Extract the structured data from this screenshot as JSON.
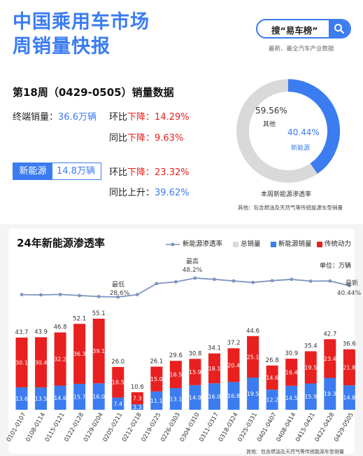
{
  "header": {
    "title_line1": "中国乘用车市场",
    "title_line2": "周销量快报",
    "search_label": "搜“易车榜”",
    "search_subtitle": "最新、最全汽车产业数据"
  },
  "summary": {
    "week_title": "第18周（0429-0505）销量数据",
    "terminal_label": "终端销量：",
    "terminal_value": "36.6万辆",
    "mom_label": "环比",
    "mom_dir": "下降：",
    "mom_value": "14.29%",
    "yoy_label": "同比",
    "yoy_dir": "下降：",
    "yoy_value": "9.63%",
    "nev_label": "新能源",
    "nev_value": "14.8万辆",
    "nev_mom_label": "环比",
    "nev_mom_dir": "下降：",
    "nev_mom_value": "23.32%",
    "nev_yoy_label": "同比上升：",
    "nev_yoy_value": "39.62%"
  },
  "donut": {
    "other_pct": "59.56%",
    "other_label": "其他",
    "nev_pct": "40.44%",
    "nev_label": "新能源",
    "nev_share": 0.4044,
    "caption": "本周新能源渗透率",
    "note": "其他：包含燃油及天然气等传统能源车型销量"
  },
  "colors": {
    "blue": "#3b7cf0",
    "red": "#e8201f",
    "gray": "#d9d9d9",
    "line": "#7d93bf"
  },
  "chart": {
    "title": "24年新能源渗透率",
    "unit": "单位：万辆",
    "footnote": "其他：包含燃油及天然气等传统能源车型销量",
    "legend": [
      "新能源渗透率",
      "总销量",
      "新能源销量",
      "传统动力"
    ],
    "annotations": {
      "low_label": "最低",
      "low_value": "28.6%",
      "high_label": "最高",
      "high_value": "48.2%",
      "latest_label": "最新",
      "latest_value": "40.44%"
    }
  },
  "chart_data": {
    "type": "bar",
    "stacked": true,
    "categories": [
      "0101-0107",
      "0108-0114",
      "0115-0121",
      "0122-0128",
      "0129-0204",
      "0205-0211",
      "0212-0218",
      "0219-0225",
      "0226-0303",
      "0304-0310",
      "0311-0317",
      "0318-0324",
      "0325-0331",
      "0401-0407",
      "0408-0414",
      "0415-0421",
      "0422-0428",
      "0429-0505"
    ],
    "series": [
      {
        "name": "新能源销量",
        "values": [
          13.6,
          13.5,
          14.6,
          15.7,
          16.0,
          7.4,
          3.3,
          11.1,
          13.1,
          14.9,
          16.0,
          16.8,
          19.5,
          12.2,
          14.5,
          15.9,
          19.3,
          14.8
        ]
      },
      {
        "name": "传统动力",
        "values": [
          30.1,
          30.4,
          32.2,
          36.3,
          39.1,
          18.5,
          7.3,
          15.0,
          16.5,
          15.9,
          18.1,
          20.4,
          25.1,
          14.6,
          16.4,
          19.5,
          23.4,
          21.8
        ]
      },
      {
        "name": "总销量",
        "values": [
          43.7,
          43.9,
          46.8,
          52.1,
          55.1,
          26.0,
          10.6,
          26.1,
          29.6,
          30.8,
          34.1,
          37.2,
          44.6,
          26.8,
          30.9,
          35.4,
          42.7,
          36.6
        ]
      },
      {
        "name": "新能源渗透率",
        "values": [
          31.1,
          30.8,
          31.2,
          30.1,
          29.0,
          28.6,
          31.1,
          42.5,
          44.3,
          48.2,
          46.9,
          45.2,
          43.7,
          45.5,
          46.9,
          45.0,
          45.2,
          40.44
        ]
      }
    ],
    "y_range_sales": [
      0,
      60
    ],
    "legend_position": "top-right"
  }
}
